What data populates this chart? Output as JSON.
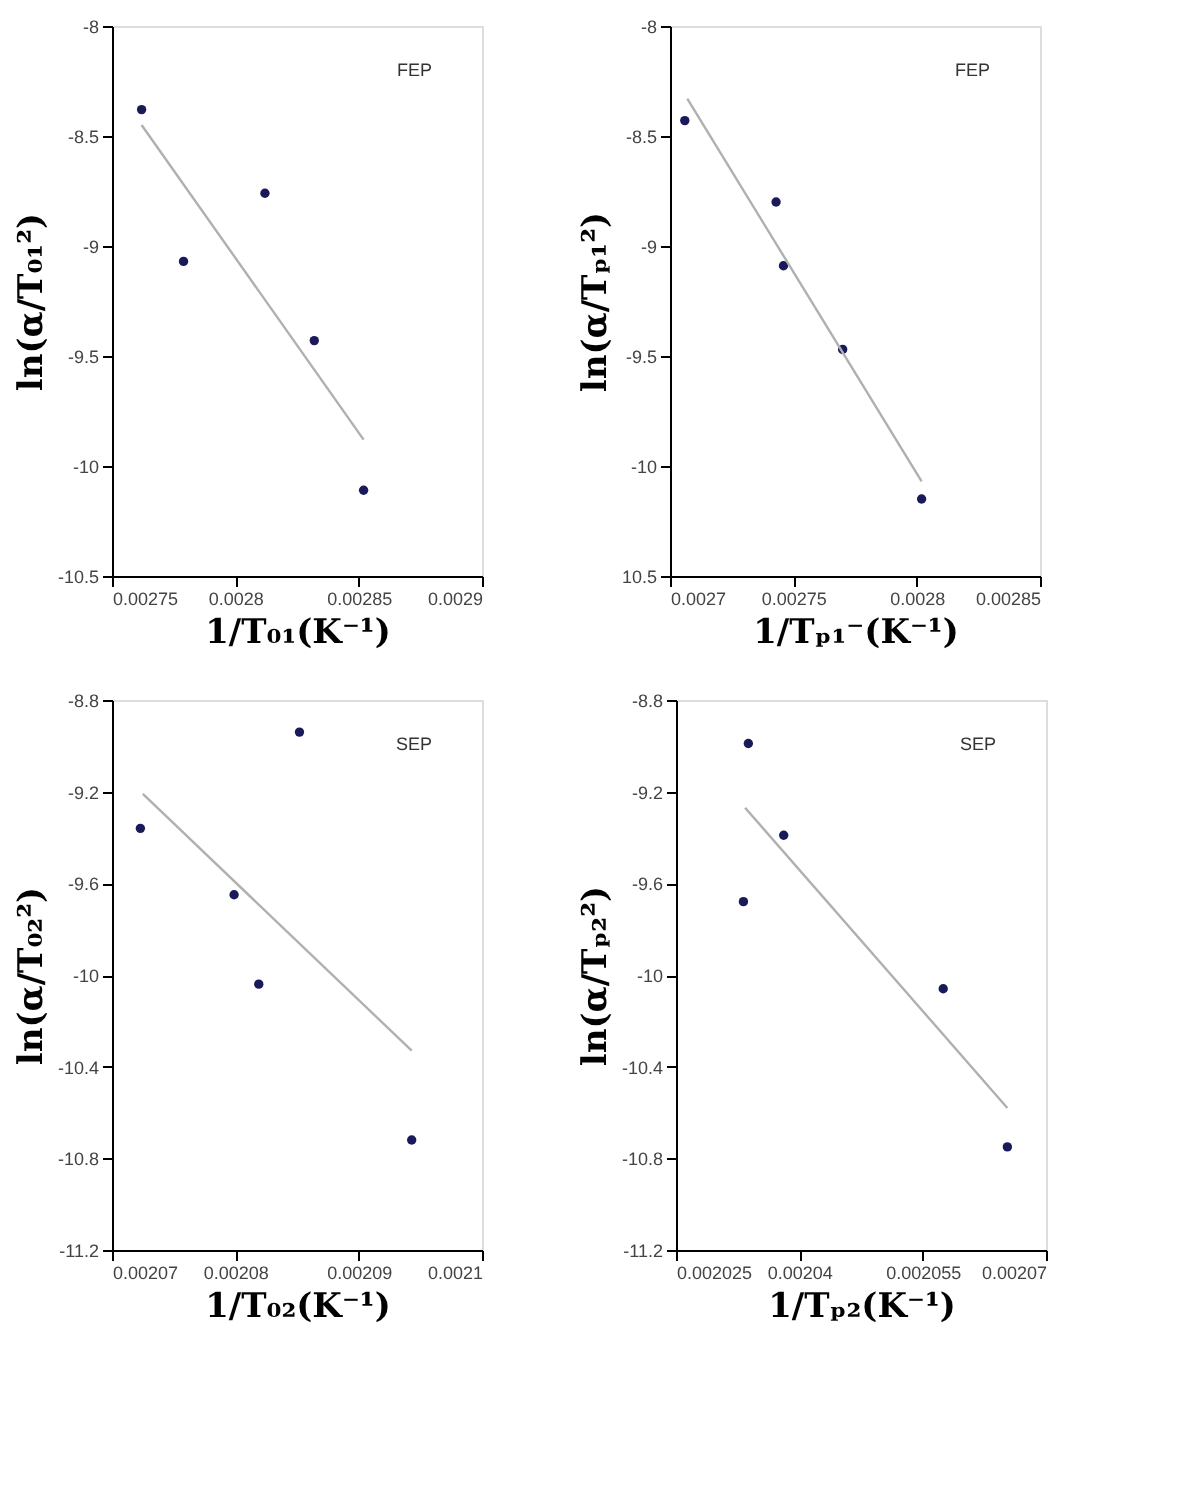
{
  "chart_data": [
    {
      "type": "scatter",
      "xlabel": "1/T₀₁(K⁻¹)",
      "ylabel": "ln(α/T₀₁²)",
      "annotations": [
        "FEP"
      ],
      "grid": false,
      "xlim": [
        0.00275,
        0.0029
      ],
      "xticks": [
        0.00275,
        0.0028,
        0.00285,
        0.0029
      ],
      "ylim": [
        -10.5,
        -8
      ],
      "yticks": [
        -10.5,
        -10,
        -9.5,
        -9,
        -8.5,
        -8
      ],
      "series": [
        {
          "marker": "circle",
          "color": "#1a1a5a",
          "x": [
            0.002762,
            0.002779,
            0.002812,
            0.002832,
            0.002852
          ],
          "values": [
            -8.38,
            -9.07,
            -8.76,
            -9.43,
            -10.11
          ]
        },
        {
          "type": "line",
          "marker": "none",
          "line_style": "solid",
          "color": "#b0b0b0",
          "x": [
            0.002762,
            0.002852
          ],
          "values": [
            -8.45,
            -9.88
          ]
        }
      ]
    },
    {
      "type": "scatter",
      "xlabel": "1/Tₚ₁⁻(K⁻¹)",
      "ylabel": "ln(α/Tₚ₁²)",
      "annotations": [
        "FEP"
      ],
      "grid": false,
      "xlim": [
        0.0027,
        0.00285
      ],
      "xticks": [
        0.0027,
        0.00275,
        0.0028,
        0.00285
      ],
      "ylim": [
        -10.5,
        -8
      ],
      "yticks": [
        {
          "value": -10.5,
          "label": "10.5"
        },
        -10,
        -9.5,
        -9,
        -8.5,
        -8
      ],
      "series": [
        {
          "marker": "circle",
          "color": "#1a1a5a",
          "x": [
            0.002706,
            0.002743,
            0.002746,
            0.00277,
            0.002802
          ],
          "values": [
            -8.43,
            -8.8,
            -9.09,
            -9.47,
            -10.15
          ]
        },
        {
          "type": "line",
          "marker": "none",
          "line_style": "solid",
          "color": "#b0b0b0",
          "x": [
            0.002707,
            0.002802
          ],
          "values": [
            -8.33,
            -10.07
          ]
        }
      ]
    },
    {
      "type": "scatter",
      "xlabel": "1/T₀₂(K⁻¹)",
      "ylabel": "ln(α/T₀₂²)",
      "annotations": [
        "SEP"
      ],
      "grid": false,
      "xlim": [
        0.00207,
        0.0021
      ],
      "xticks": [
        0.00207,
        0.00208,
        0.00209,
        0.0021
      ],
      "ylim": [
        -11.2,
        -8.8
      ],
      "yticks": [
        -11.2,
        -10.8,
        -10.4,
        -10,
        -9.6,
        -9.2,
        -8.8
      ],
      "series": [
        {
          "marker": "circle",
          "color": "#1a1a5a",
          "x": [
            0.0020723,
            0.0020799,
            0.0020819,
            0.0020852,
            0.0020943
          ],
          "values": [
            -9.36,
            -9.65,
            -10.04,
            -8.94,
            -10.72
          ]
        },
        {
          "type": "line",
          "marker": "none",
          "line_style": "solid",
          "color": "#b0b0b0",
          "x": [
            0.0020725,
            0.0020943
          ],
          "values": [
            -9.21,
            -10.33
          ]
        }
      ]
    },
    {
      "type": "scatter",
      "xlabel": "1/Tₚ₂(K⁻¹)",
      "ylabel": "ln(α/Tₚ₂²)",
      "annotations": [
        "SEP"
      ],
      "grid": false,
      "xlim": [
        0.002025,
        0.00207
      ],
      "xticks": [
        0.002025,
        0.00204,
        0.002055,
        0.00207
      ],
      "ylim": [
        -11.2,
        -8.8
      ],
      "yticks": [
        -11.2,
        -10.8,
        -10.4,
        -10,
        -9.6,
        -9.2,
        -8.8
      ],
      "series": [
        {
          "marker": "circle",
          "color": "#1a1a5a",
          "x": [
            0.0020338,
            0.0020332,
            0.0020381,
            0.0020575,
            0.0020653
          ],
          "values": [
            -8.99,
            -9.68,
            -9.39,
            -10.06,
            -10.75
          ]
        },
        {
          "type": "line",
          "marker": "none",
          "line_style": "solid",
          "color": "#b0b0b0",
          "x": [
            0.0020334,
            0.0020653
          ],
          "values": [
            -9.27,
            -10.58
          ]
        }
      ]
    }
  ]
}
